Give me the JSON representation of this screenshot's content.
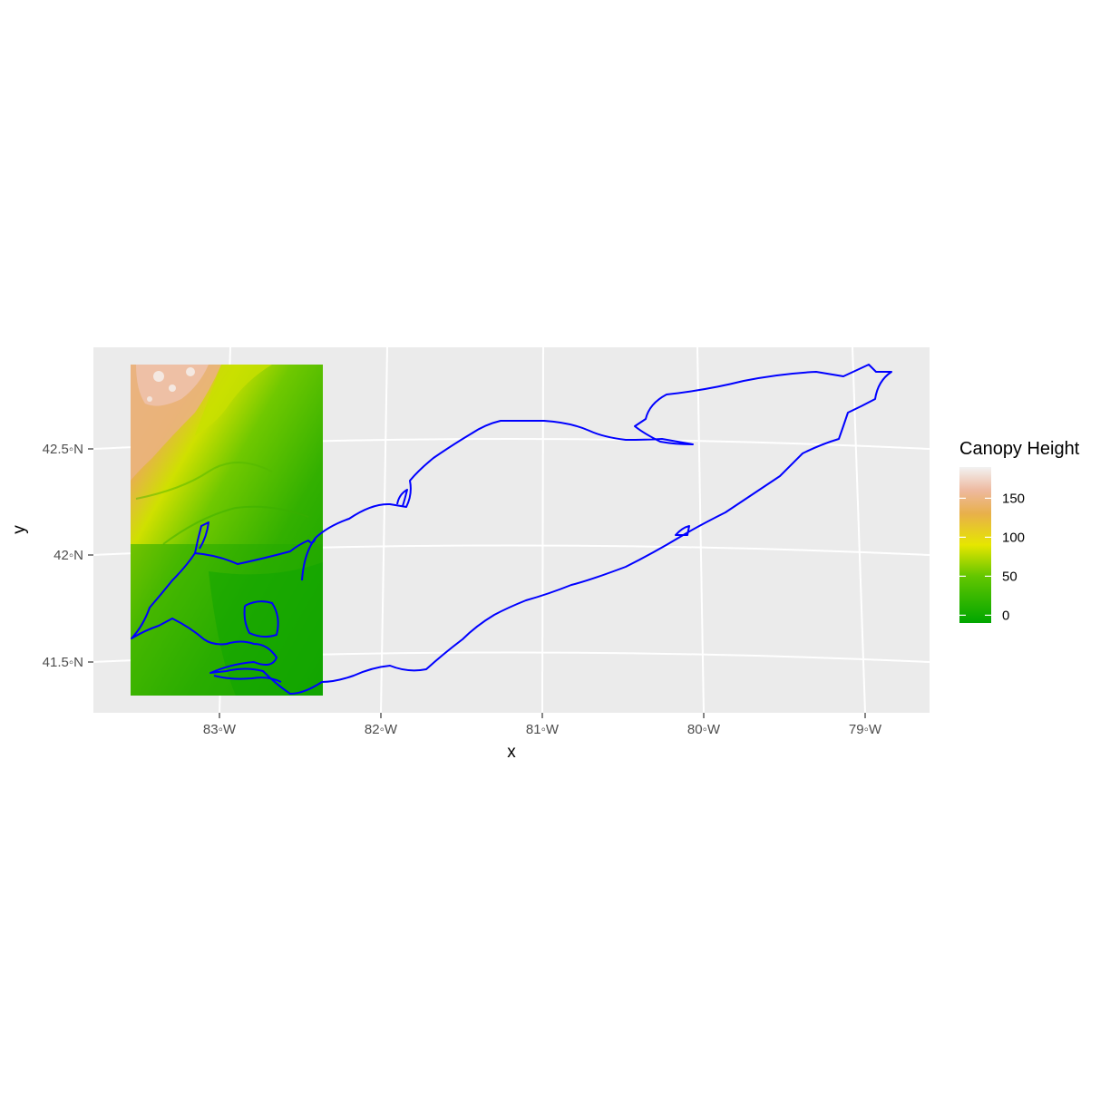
{
  "map": {
    "x_title": "x",
    "y_title": "y",
    "x_ticks": [
      "83◦W",
      "82◦W",
      "81◦W",
      "80◦W",
      "79◦W"
    ],
    "y_ticks": [
      "42.5◦N",
      "42◦N",
      "41.5◦N"
    ],
    "legend": {
      "title": "Canopy Height",
      "labels": [
        "150",
        "100",
        "50",
        "0"
      ],
      "values": [
        150,
        100,
        50,
        0
      ],
      "range": [
        -10,
        190
      ],
      "colors": [
        "#00a600",
        "#63c600",
        "#e6e600",
        "#e8b04a",
        "#eeb99f",
        "#f2f2f2"
      ]
    },
    "colors": {
      "panel": "#ebebeb",
      "grid": "#ffffff",
      "outline": "#0000ff"
    }
  }
}
